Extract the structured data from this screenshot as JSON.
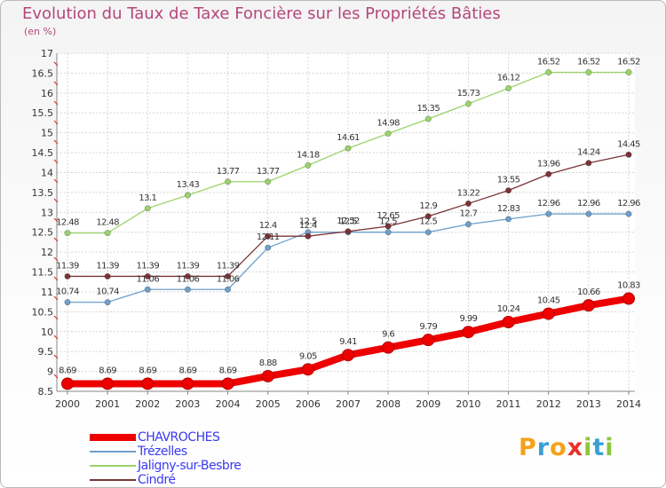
{
  "title": "Evolution du Taux de Taxe Foncière sur les Propriétés Bâties",
  "unit_label": "(en %)",
  "logo": {
    "text": "Proxiti",
    "letters": [
      "P",
      "r",
      "o",
      "x",
      "i",
      "t",
      "i"
    ],
    "colors": [
      "#f4a21a",
      "#3b9fd6",
      "#f4a21a",
      "#e8322b",
      "#8cc63f",
      "#3b9fd6",
      "#8cc63f"
    ]
  },
  "chart_data": {
    "type": "line",
    "title": "Evolution du Taux de Taxe Foncière sur les Propriétés Bâties",
    "ylabel": "(en %)",
    "xlabel": "",
    "x": [
      "2000",
      "2001",
      "2002",
      "2003",
      "2004",
      "2005",
      "2006",
      "2007",
      "2008",
      "2009",
      "2010",
      "2011",
      "2012",
      "2013",
      "2014"
    ],
    "ylim": [
      8.5,
      17
    ],
    "yticks": [
      "8.5",
      "9",
      "9.5",
      "10",
      "10.5",
      "11",
      "11.5",
      "12",
      "12.5",
      "13",
      "13.5",
      "14",
      "14.5",
      "15",
      "15.5",
      "16",
      "16.5",
      "17"
    ],
    "grid": true,
    "legend_position": "bottom-left",
    "series": [
      {
        "name": "CHAVROCHES",
        "color": "#ee0000",
        "highlight": true,
        "values": [
          8.69,
          8.69,
          8.69,
          8.69,
          8.69,
          8.88,
          9.05,
          9.41,
          9.6,
          9.79,
          9.99,
          10.24,
          10.45,
          10.66,
          10.83
        ],
        "labels": [
          "8.69",
          "8.69",
          "8.69",
          "8.69",
          "8.69",
          "8.88",
          "9.05",
          "9.41",
          "9.6",
          "9.79",
          "9.99",
          "10.24",
          "10.45",
          "10.66",
          "10.83"
        ]
      },
      {
        "name": "Trézelles",
        "color": "#6e9fc9",
        "values": [
          10.74,
          10.74,
          11.06,
          11.06,
          11.06,
          12.11,
          12.5,
          12.5,
          12.5,
          12.5,
          12.7,
          12.83,
          12.96,
          12.96,
          12.96
        ],
        "labels": [
          "10.74",
          "10.74",
          "11.06",
          "11.06",
          "11.06",
          "12.11",
          "12.5",
          "12.5",
          "12.5",
          "12.5",
          "12.7",
          "12.83",
          "12.96",
          "12.96",
          "12.96"
        ]
      },
      {
        "name": "Jaligny-sur-Besbre",
        "color": "#9ad36a",
        "values": [
          12.48,
          12.48,
          13.1,
          13.43,
          13.77,
          13.77,
          14.18,
          14.61,
          14.98,
          15.35,
          15.73,
          16.12,
          16.52,
          16.52,
          16.52
        ],
        "labels": [
          "12.48",
          "12.48",
          "13.1",
          "13.43",
          "13.77",
          "13.77",
          "14.18",
          "14.61",
          "14.98",
          "15.35",
          "15.73",
          "16.12",
          "16.52",
          "16.52",
          "16.52"
        ]
      },
      {
        "name": "Cindré",
        "color": "#7a3438",
        "values": [
          11.39,
          11.39,
          11.39,
          11.39,
          11.39,
          12.4,
          12.4,
          12.52,
          12.65,
          12.9,
          13.22,
          13.55,
          13.96,
          14.24,
          14.45
        ],
        "labels": [
          "11.39",
          "11.39",
          "11.39",
          "11.39",
          "11.39",
          "12.4",
          "12.4",
          "12.52",
          "12.65",
          "12.9",
          "13.22",
          "13.55",
          "13.96",
          "14.24",
          "14.45"
        ]
      }
    ]
  }
}
